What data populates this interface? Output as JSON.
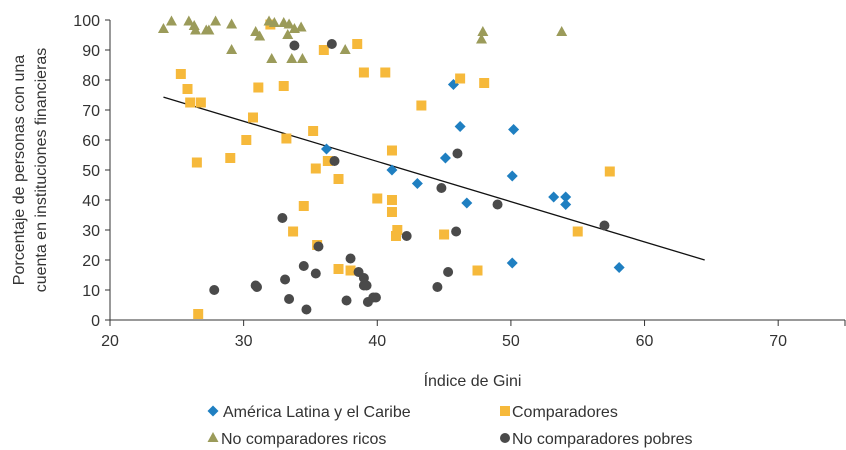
{
  "chart_data": {
    "type": "scatter",
    "xlabel": "Índice de Gini",
    "ylabel": [
      "Porcentaje de personas con una",
      "cuenta en instituciones financieras"
    ],
    "xlim": [
      20,
      75
    ],
    "ylim": [
      0,
      100
    ],
    "xticks": [
      20,
      30,
      40,
      50,
      60,
      70
    ],
    "yticks": [
      0,
      10,
      20,
      30,
      40,
      50,
      60,
      70,
      80,
      90,
      100
    ],
    "grid": false,
    "legend_position": "bottom",
    "trendline": {
      "x": [
        24,
        64.5
      ],
      "y": [
        74.3,
        20
      ]
    },
    "series": [
      {
        "name": "América Latina y el Caribe",
        "marker": "diamond",
        "color": "#1f7fc1",
        "points": [
          [
            36.2,
            57
          ],
          [
            41.1,
            50
          ],
          [
            43.0,
            45.5
          ],
          [
            45.1,
            54
          ],
          [
            45.7,
            78.5
          ],
          [
            46.2,
            64.5
          ],
          [
            46.7,
            39
          ],
          [
            50.1,
            48
          ],
          [
            50.2,
            63.5
          ],
          [
            50.1,
            19
          ],
          [
            53.2,
            41
          ],
          [
            54.1,
            38.5
          ],
          [
            54.1,
            41
          ],
          [
            58.1,
            17.5
          ]
        ]
      },
      {
        "name": "Comparadores",
        "marker": "square",
        "color": "#f6b93b",
        "points": [
          [
            25.3,
            82
          ],
          [
            25.8,
            77
          ],
          [
            26.0,
            72.5
          ],
          [
            26.5,
            52.5
          ],
          [
            26.8,
            72.5
          ],
          [
            26.6,
            2
          ],
          [
            29.0,
            54
          ],
          [
            30.2,
            60
          ],
          [
            30.7,
            67.5
          ],
          [
            31.1,
            77.5
          ],
          [
            32.0,
            98.5
          ],
          [
            33.0,
            78
          ],
          [
            33.2,
            60.5
          ],
          [
            33.7,
            29.5
          ],
          [
            34.5,
            38
          ],
          [
            35.2,
            63
          ],
          [
            35.4,
            50.5
          ],
          [
            35.5,
            25
          ],
          [
            36.0,
            90
          ],
          [
            36.3,
            53
          ],
          [
            37.1,
            47
          ],
          [
            37.1,
            17
          ],
          [
            38.0,
            16.5
          ],
          [
            38.5,
            92
          ],
          [
            39.0,
            82.5
          ],
          [
            40.0,
            40.5
          ],
          [
            40.6,
            82.5
          ],
          [
            41.1,
            40
          ],
          [
            41.1,
            36
          ],
          [
            41.1,
            56.5
          ],
          [
            41.4,
            28
          ],
          [
            41.5,
            30
          ],
          [
            43.3,
            71.5
          ],
          [
            45.0,
            28.5
          ],
          [
            46.2,
            80.5
          ],
          [
            47.5,
            16.5
          ],
          [
            48.0,
            79
          ],
          [
            55.0,
            29.5
          ],
          [
            57.4,
            49.5
          ]
        ]
      },
      {
        "name": "No comparadores ricos",
        "marker": "triangle",
        "color": "#9b9b5a",
        "points": [
          [
            24.0,
            97
          ],
          [
            24.6,
            99.5
          ],
          [
            25.9,
            99.5
          ],
          [
            26.3,
            98
          ],
          [
            26.4,
            96.5
          ],
          [
            27.2,
            96.5
          ],
          [
            27.4,
            96.5
          ],
          [
            27.9,
            99.5
          ],
          [
            29.1,
            90
          ],
          [
            29.1,
            98.5
          ],
          [
            30.9,
            96
          ],
          [
            31.2,
            94.5
          ],
          [
            31.9,
            99.5
          ],
          [
            32.1,
            87
          ],
          [
            32.3,
            99
          ],
          [
            33.0,
            99
          ],
          [
            33.3,
            95
          ],
          [
            33.4,
            98.5
          ],
          [
            33.6,
            87
          ],
          [
            33.8,
            97
          ],
          [
            34.3,
            97.5
          ],
          [
            34.4,
            87
          ],
          [
            37.6,
            90
          ],
          [
            47.8,
            93.5
          ],
          [
            47.9,
            96
          ],
          [
            53.8,
            96
          ]
        ]
      },
      {
        "name": "No comparadores pobres",
        "marker": "circle",
        "color": "#4a4a4a",
        "points": [
          [
            27.8,
            10
          ],
          [
            30.9,
            11.5
          ],
          [
            31.0,
            11
          ],
          [
            32.9,
            34
          ],
          [
            33.1,
            13.5
          ],
          [
            33.4,
            7
          ],
          [
            33.8,
            91.5
          ],
          [
            34.5,
            18
          ],
          [
            34.7,
            3.5
          ],
          [
            35.4,
            15.5
          ],
          [
            35.6,
            24.5
          ],
          [
            36.6,
            92
          ],
          [
            36.8,
            53
          ],
          [
            37.7,
            6.5
          ],
          [
            38.0,
            20.5
          ],
          [
            38.6,
            16
          ],
          [
            39.0,
            14
          ],
          [
            39.0,
            11.5
          ],
          [
            39.2,
            11.5
          ],
          [
            39.3,
            6
          ],
          [
            39.7,
            7.5
          ],
          [
            39.9,
            7.5
          ],
          [
            42.2,
            28
          ],
          [
            44.5,
            11
          ],
          [
            44.8,
            44
          ],
          [
            45.3,
            16
          ],
          [
            45.9,
            29.5
          ],
          [
            46.0,
            55.5
          ],
          [
            49.0,
            38.5
          ],
          [
            57.0,
            31.5
          ]
        ]
      }
    ]
  }
}
